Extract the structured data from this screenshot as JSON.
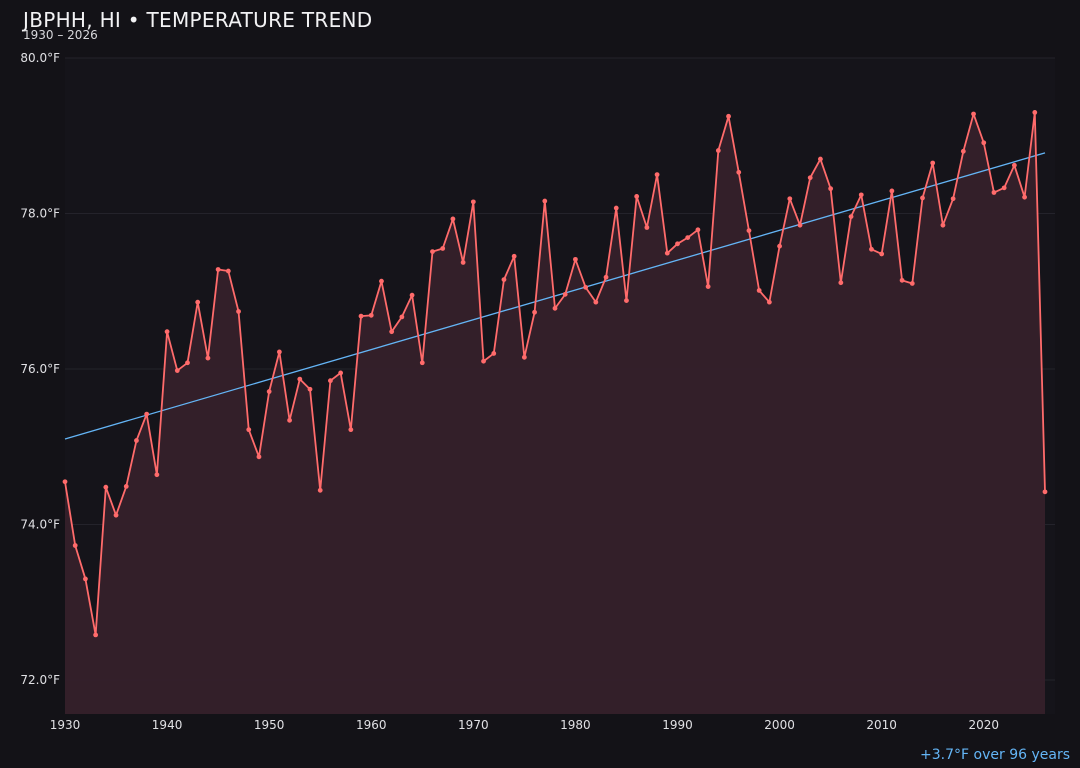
{
  "chart_data": {
    "type": "line",
    "title": "JBPHH, HI • TEMPERATURE TREND",
    "subtitle": "1930 – 2026",
    "xlabel": "",
    "ylabel": "",
    "xlim": [
      1930,
      2026
    ],
    "ylim": [
      71.6,
      80.0
    ],
    "y_ticks": [
      72.0,
      74.0,
      76.0,
      78.0,
      80.0
    ],
    "y_tick_labels": [
      "72.0°F",
      "74.0°F",
      "76.0°F",
      "78.0°F",
      "80.0°F"
    ],
    "x_ticks": [
      1930,
      1940,
      1950,
      1960,
      1970,
      1980,
      1990,
      2000,
      2010,
      2020
    ],
    "x_tick_labels": [
      "1930",
      "1940",
      "1950",
      "1960",
      "1970",
      "1980",
      "1990",
      "2000",
      "2010",
      "2020"
    ],
    "grid": "horizontal",
    "series": [
      {
        "kind": "line_area",
        "color": "#ff6b6b",
        "x": [
          1930,
          1931,
          1932,
          1933,
          1934,
          1935,
          1936,
          1937,
          1938,
          1939,
          1940,
          1941,
          1942,
          1943,
          1944,
          1945,
          1946,
          1947,
          1948,
          1949,
          1950,
          1951,
          1952,
          1953,
          1954,
          1955,
          1956,
          1957,
          1958,
          1959,
          1960,
          1961,
          1962,
          1963,
          1964,
          1965,
          1966,
          1967,
          1968,
          1969,
          1970,
          1971,
          1972,
          1973,
          1974,
          1975,
          1976,
          1977,
          1978,
          1979,
          1980,
          1981,
          1982,
          1983,
          1984,
          1985,
          1986,
          1987,
          1988,
          1989,
          1990,
          1991,
          1992,
          1993,
          1994,
          1995,
          1996,
          1997,
          1998,
          1999,
          2000,
          2001,
          2002,
          2003,
          2004,
          2005,
          2006,
          2007,
          2008,
          2009,
          2010,
          2011,
          2012,
          2013,
          2014,
          2015,
          2016,
          2017,
          2018,
          2019,
          2020,
          2021,
          2022,
          2023,
          2024,
          2025,
          2026
        ],
        "y": [
          74.55,
          73.73,
          73.3,
          72.58,
          74.48,
          74.12,
          74.49,
          75.08,
          75.42,
          74.64,
          76.48,
          75.98,
          76.08,
          76.86,
          76.14,
          77.28,
          77.26,
          76.74,
          75.22,
          74.87,
          75.71,
          76.22,
          75.34,
          75.87,
          75.74,
          74.44,
          75.85,
          75.95,
          75.22,
          76.68,
          76.69,
          77.13,
          76.48,
          76.67,
          76.95,
          76.08,
          77.51,
          77.55,
          77.93,
          77.37,
          78.15,
          76.1,
          76.2,
          77.15,
          77.45,
          76.15,
          76.73,
          78.16,
          76.78,
          76.96,
          77.41,
          77.05,
          76.86,
          77.18,
          78.07,
          76.88,
          78.22,
          77.82,
          78.5,
          77.49,
          77.61,
          77.69,
          77.79,
          77.06,
          78.81,
          79.25,
          78.53,
          77.78,
          77.01,
          76.86,
          77.58,
          78.19,
          77.85,
          78.46,
          78.7,
          78.32,
          77.11,
          77.96,
          78.24,
          77.54,
          77.48,
          78.29,
          77.14,
          77.1,
          78.2,
          78.65,
          77.85,
          78.19,
          78.8,
          79.28,
          78.91,
          78.27,
          78.33,
          78.62,
          78.21,
          79.3,
          74.42
        ]
      },
      {
        "kind": "trend",
        "color": "#64b5f6",
        "x": [
          1930,
          2026
        ],
        "y": [
          75.1,
          78.78
        ]
      }
    ],
    "annotations": [
      "+3.7°F over 96 years"
    ]
  },
  "colors": {
    "background": "#131217",
    "series": "#ff6b6b",
    "area_fill": "#35202a",
    "trend": "#64b5f6"
  }
}
